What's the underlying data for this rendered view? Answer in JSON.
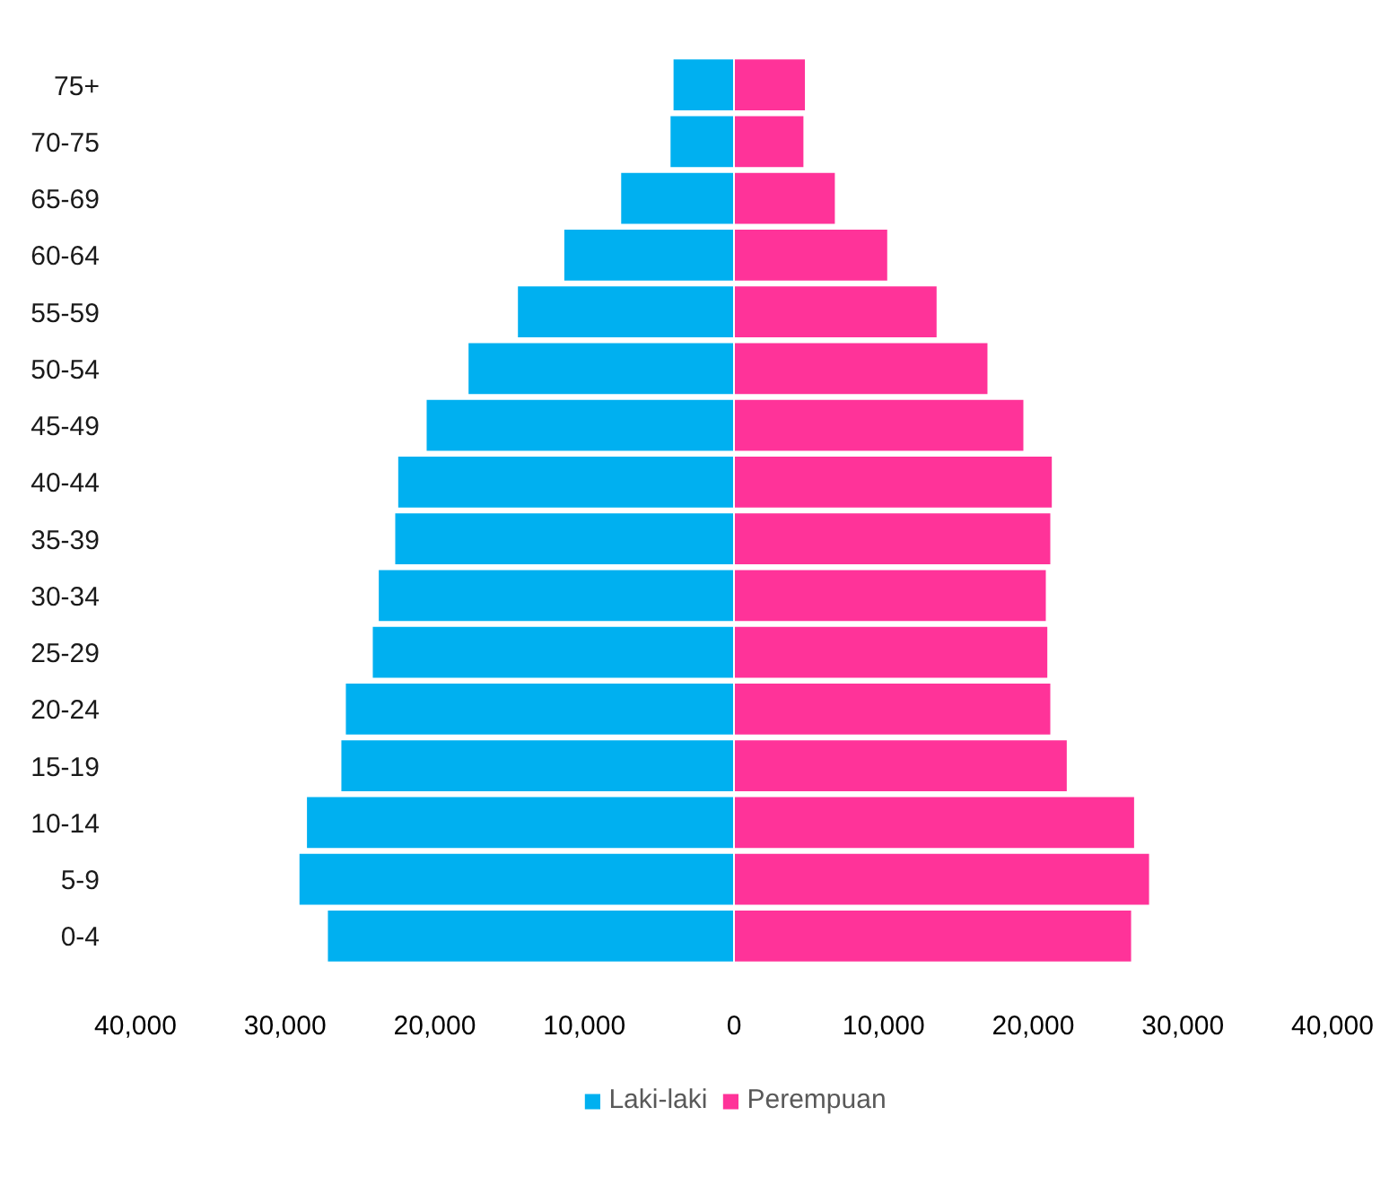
{
  "chart_data": {
    "type": "bar",
    "orientation": "horizontal",
    "stacked": true,
    "categories": [
      "75+",
      "70-75",
      "65-69",
      "60-64",
      "55-59",
      "50-54",
      "45-49",
      "40-44",
      "35-39",
      "30-34",
      "25-29",
      "20-24",
      "15-19",
      "10-14",
      "5-9",
      "0-4"
    ],
    "series": [
      {
        "name": "Laki-laki",
        "color": "#00b0f0",
        "values": [
          -4100,
          -4300,
          -7600,
          -11400,
          -14500,
          -17800,
          -20600,
          -22500,
          -22700,
          -23800,
          -24200,
          -26000,
          -26300,
          -28600,
          -29100,
          -27200
        ]
      },
      {
        "name": "Perempuan",
        "color": "#ff3399",
        "values": [
          4800,
          4700,
          6800,
          10300,
          13600,
          17000,
          19400,
          21300,
          21200,
          20900,
          21000,
          21200,
          22300,
          26800,
          27800,
          26600
        ]
      }
    ],
    "xlim": [
      -40000,
      40000
    ],
    "xticks": [
      {
        "value": -40000,
        "label": "40,000"
      },
      {
        "value": -30000,
        "label": "30,000"
      },
      {
        "value": -20000,
        "label": "20,000"
      },
      {
        "value": -10000,
        "label": "10,000"
      },
      0,
      {
        "value": 10000,
        "label": "10,000"
      },
      {
        "value": 20000,
        "label": "20,000"
      },
      {
        "value": 30000,
        "label": "30,000"
      },
      {
        "value": 40000,
        "label": "40,000"
      }
    ],
    "grid": false,
    "legend": "bottom"
  }
}
